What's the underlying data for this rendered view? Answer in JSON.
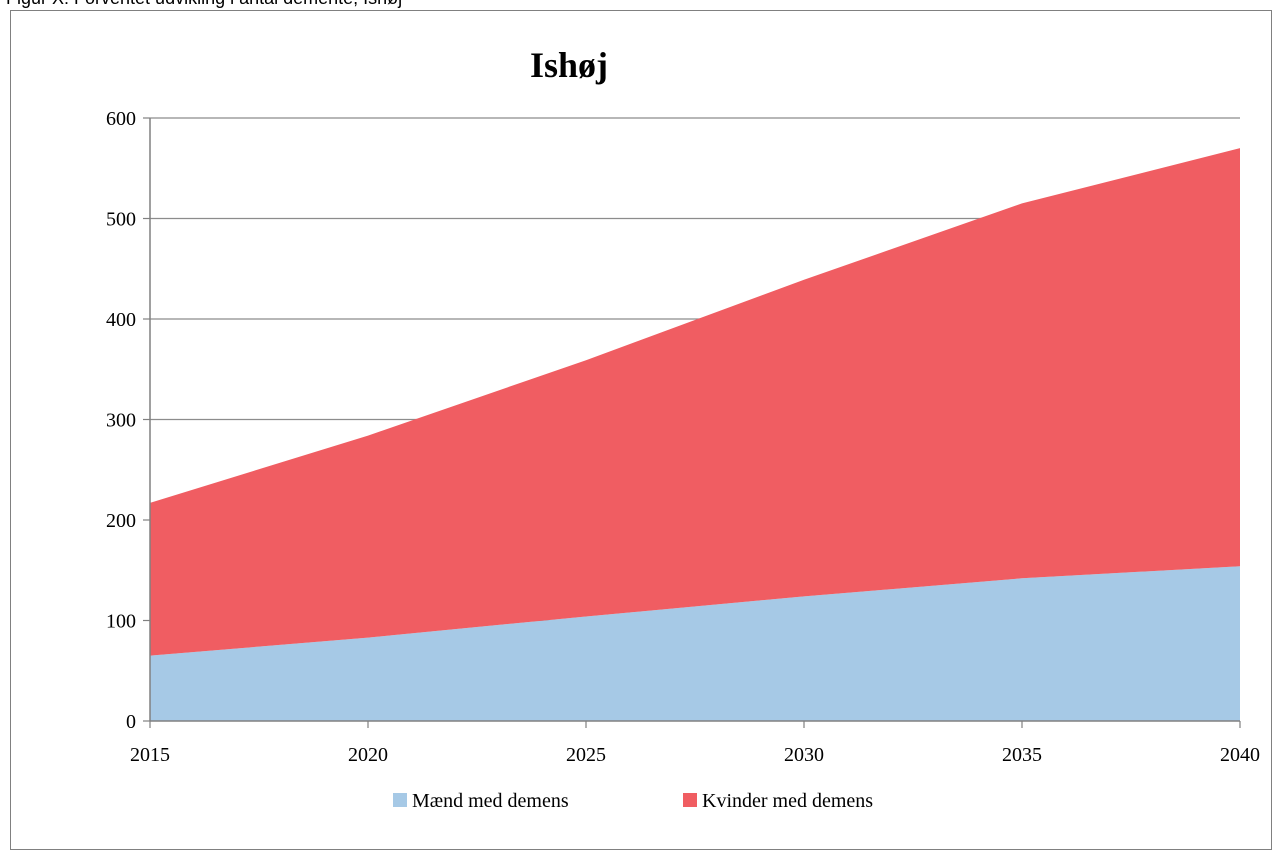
{
  "caption": "Figur X: Forventet udvikling i antal demente, Ishøj",
  "chart_data": {
    "type": "area",
    "stacked": true,
    "title": "Ishøj",
    "xlabel": "",
    "ylabel": "",
    "x": [
      2015,
      2020,
      2025,
      2030,
      2035,
      2040
    ],
    "ylim": [
      0,
      600
    ],
    "yticks": [
      0,
      100,
      200,
      300,
      400,
      500,
      600
    ],
    "grid": true,
    "legend_position": "bottom",
    "series": [
      {
        "name": "Mænd med demens",
        "color": "#a6c9e6",
        "values": [
          65,
          83,
          104,
          124,
          142,
          154
        ]
      },
      {
        "name": "Kvinder med demens",
        "color": "#f05d62",
        "values": [
          152,
          201,
          255,
          315,
          373,
          416
        ]
      }
    ]
  }
}
